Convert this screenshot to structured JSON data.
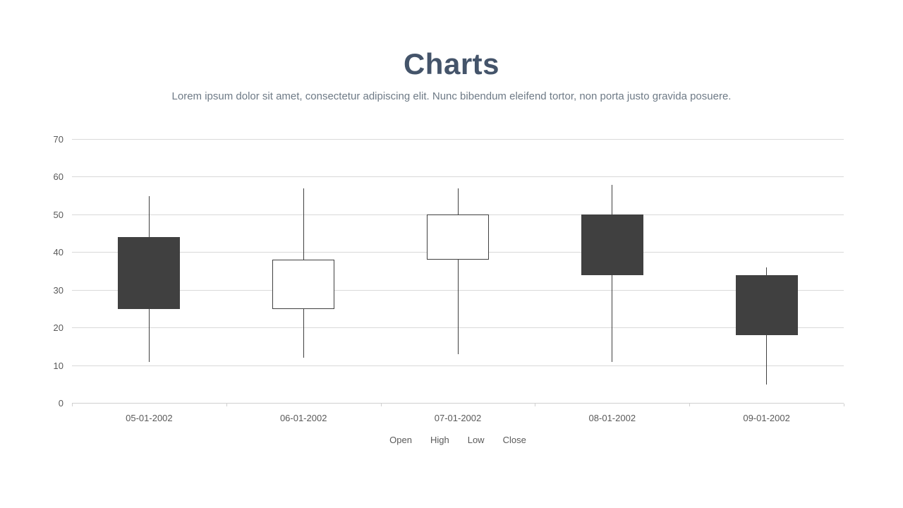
{
  "header": {
    "title": "Charts",
    "subtitle": "Lorem ipsum dolor sit amet, consectetur adipiscing elit. Nunc bibendum eleifend tortor, non porta justo gravida posuere."
  },
  "theme": {
    "title_color": "#44546a",
    "subtitle_color": "#6e7a86"
  },
  "chart_data": {
    "type": "candlestick",
    "title": "Charts",
    "categories": [
      "05-01-2002",
      "06-01-2002",
      "07-01-2002",
      "08-01-2002",
      "09-01-2002"
    ],
    "series": [
      {
        "name": "Open",
        "values": [
          44,
          25,
          38,
          50,
          34
        ]
      },
      {
        "name": "High",
        "values": [
          55,
          57,
          57,
          58,
          36
        ]
      },
      {
        "name": "Low",
        "values": [
          11,
          12,
          13,
          11,
          5
        ]
      },
      {
        "name": "Close",
        "values": [
          25,
          38,
          50,
          34,
          18
        ]
      }
    ],
    "direction": [
      "down",
      "up",
      "up",
      "down",
      "down"
    ],
    "ylim": [
      0,
      70
    ],
    "ytick_step": 10,
    "ytick_labels": [
      "0",
      "10",
      "20",
      "30",
      "40",
      "50",
      "60",
      "70"
    ],
    "grid": true,
    "legend": [
      "Open",
      "High",
      "Low",
      "Close"
    ],
    "legend_position": "bottom",
    "colors": {
      "up_fill": "#ffffff",
      "down_fill": "#404040",
      "stroke": "#404040",
      "gridline": "#d9d9d9",
      "axis": "#d0d0d0",
      "tick_label": "#595959"
    }
  }
}
